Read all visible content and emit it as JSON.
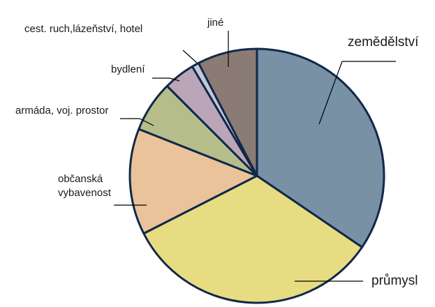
{
  "chart_data": {
    "type": "pie",
    "title": "",
    "start_angle_deg": 0,
    "direction": "clockwise",
    "slices": [
      {
        "label": "zemědělství",
        "value": 34.5,
        "color": "#7891a5"
      },
      {
        "label": "průmysl",
        "value": 33.0,
        "color": "#e8dc82"
      },
      {
        "label": "občanská vybavenost",
        "value": 13.5,
        "color": "#eac39b"
      },
      {
        "label": "armáda, voj. prostor",
        "value": 6.5,
        "color": "#b5bd8b"
      },
      {
        "label": "bydlení",
        "value": 4.0,
        "color": "#bba5b8"
      },
      {
        "label": "cest. ruch,lázeňství, hotel",
        "value": 0.9,
        "color": "#c3c8d6"
      },
      {
        "label": "jiné",
        "value": 7.6,
        "color": "#8a7c75"
      }
    ],
    "labels": {
      "zemedelstvi": "zemědělství",
      "prumysl": "průmysl",
      "obcanska_line1": "občanská",
      "obcanska_line2": "vybavenost",
      "armada": "armáda, voj. prostor",
      "bydleni": "bydlení",
      "cest_ruch": "cest. ruch,lázeňství, hotel",
      "jine": "jiné"
    }
  }
}
